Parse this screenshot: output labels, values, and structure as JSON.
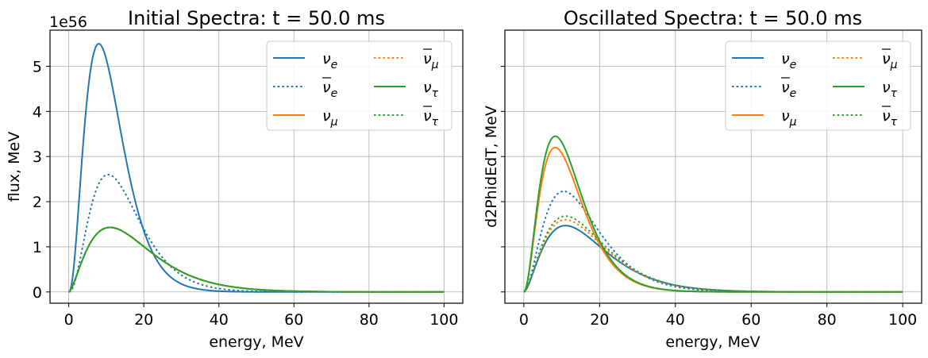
{
  "chart_data": [
    {
      "type": "line",
      "title": "Initial Spectra: t = 50.0 ms",
      "xlabel": "energy, MeV",
      "ylabel": "flux, MeV",
      "y_offset_text": "1e56",
      "xlim": [
        -5,
        105
      ],
      "ylim": [
        -0.25,
        5.8
      ],
      "xticks": [
        0,
        20,
        40,
        60,
        80,
        100
      ],
      "xtick_labels": [
        "0",
        "20",
        "40",
        "60",
        "80",
        "100"
      ],
      "yticks": [
        0,
        1,
        2,
        3,
        4,
        5
      ],
      "ytick_labels": [
        "0",
        "1",
        "2",
        "3",
        "4",
        "5"
      ],
      "grid": true,
      "legend_position": "top-right",
      "legend_columns": 2,
      "series": [
        {
          "name": "ν_e",
          "legend_base": "ν",
          "legend_sub": "e",
          "legend_bar": false,
          "color": "#1f77b4",
          "dash": "solid",
          "peak_energy": 8,
          "peak_value": 5.5,
          "alpha": 2.4
        },
        {
          "name": "ν̄_e",
          "legend_base": "ν",
          "legend_sub": "e",
          "legend_bar": true,
          "color": "#1f77b4",
          "dash": "dotted",
          "peak_energy": 10.5,
          "peak_value": 2.6,
          "alpha": 2.4
        },
        {
          "name": "ν_μ",
          "legend_base": "ν",
          "legend_sub": "μ",
          "legend_bar": false,
          "color": "#ff7f0e",
          "dash": "solid",
          "peak_energy": 11,
          "peak_value": 1.43,
          "alpha": 1.6
        },
        {
          "name": "ν̄_μ",
          "legend_base": "ν",
          "legend_sub": "μ",
          "legend_bar": true,
          "color": "#ff7f0e",
          "dash": "dotted",
          "peak_energy": 11,
          "peak_value": 1.43,
          "alpha": 1.6
        },
        {
          "name": "ν_τ",
          "legend_base": "ν",
          "legend_sub": "τ",
          "legend_bar": false,
          "color": "#2ca02c",
          "dash": "solid",
          "peak_energy": 11,
          "peak_value": 1.43,
          "alpha": 1.6
        },
        {
          "name": "ν̄_τ",
          "legend_base": "ν",
          "legend_sub": "τ",
          "legend_bar": true,
          "color": "#2ca02c",
          "dash": "dotted",
          "peak_energy": 11,
          "peak_value": 1.43,
          "alpha": 1.6
        }
      ]
    },
    {
      "type": "line",
      "title": "Oscillated Spectra: t = 50.0 ms",
      "xlabel": "energy, MeV",
      "ylabel": "d2PhidEdT, MeV",
      "xlim": [
        -5,
        105
      ],
      "ylim": [
        -0.25,
        5.8
      ],
      "xticks": [
        0,
        20,
        40,
        60,
        80,
        100
      ],
      "xtick_labels": [
        "0",
        "20",
        "40",
        "60",
        "80",
        "100"
      ],
      "yticks": [
        0,
        1,
        2,
        3,
        4,
        5
      ],
      "ytick_labels_visible": false,
      "grid": true,
      "legend_position": "top-right",
      "legend_columns": 2,
      "series": [
        {
          "name": "ν_e",
          "legend_base": "ν",
          "legend_sub": "e",
          "legend_bar": false,
          "color": "#1f77b4",
          "dash": "solid",
          "peak_energy": 11,
          "peak_value": 1.47,
          "alpha": 1.7
        },
        {
          "name": "ν̄_e",
          "legend_base": "ν",
          "legend_sub": "e",
          "legend_bar": true,
          "color": "#1f77b4",
          "dash": "dotted",
          "peak_energy": 10.5,
          "peak_value": 2.23,
          "alpha": 2.0
        },
        {
          "name": "ν_μ",
          "legend_base": "ν",
          "legend_sub": "μ",
          "legend_bar": false,
          "color": "#ff7f0e",
          "dash": "solid",
          "peak_energy": 8.3,
          "peak_value": 3.2,
          "alpha": 2.1
        },
        {
          "name": "ν̄_μ",
          "legend_base": "ν",
          "legend_sub": "μ",
          "legend_bar": true,
          "color": "#ff7f0e",
          "dash": "dotted",
          "peak_energy": 11,
          "peak_value": 1.6,
          "alpha": 1.8
        },
        {
          "name": "ν_τ",
          "legend_base": "ν",
          "legend_sub": "τ",
          "legend_bar": false,
          "color": "#2ca02c",
          "dash": "solid",
          "peak_energy": 8.3,
          "peak_value": 3.45,
          "alpha": 2.1
        },
        {
          "name": "ν̄_τ",
          "legend_base": "ν",
          "legend_sub": "τ",
          "legend_bar": true,
          "color": "#2ca02c",
          "dash": "dotted",
          "peak_energy": 11,
          "peak_value": 1.68,
          "alpha": 1.8
        }
      ]
    }
  ]
}
